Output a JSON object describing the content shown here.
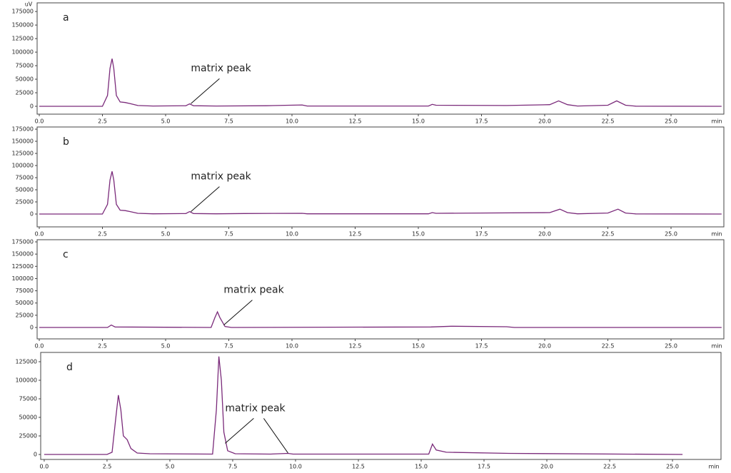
{
  "chart_data": [
    {
      "type": "line",
      "title": "a",
      "y_label": "uV",
      "x_label": "min",
      "color": "#7a2a7a",
      "xlim": [
        -0.085,
        27.09
      ],
      "ylim": [
        -14500,
        191000
      ],
      "xticks": [
        {
          "value": 0,
          "label": "0.0"
        },
        2.5,
        {
          "value": 5,
          "label": "5.0"
        },
        7.5,
        {
          "value": 10,
          "label": "10.0"
        },
        12.5,
        {
          "value": 15,
          "label": "15.0"
        },
        17.5,
        {
          "value": 20,
          "label": "20.0"
        },
        22.5,
        {
          "value": 25,
          "label": "25.0"
        }
      ],
      "yticks": [
        0,
        25000,
        50000,
        75000,
        100000,
        125000,
        150000,
        175000
      ],
      "x": [
        0,
        2.5,
        2.7,
        2.8,
        2.88,
        2.95,
        3.05,
        3.2,
        3.4,
        3.6,
        3.9,
        4.5,
        5.8,
        5.95,
        6.1,
        7,
        9,
        10.4,
        10.6,
        15.4,
        15.55,
        15.7,
        18.5,
        20.2,
        20.55,
        20.9,
        21.3,
        22.5,
        22.85,
        23.2,
        23.6,
        27
      ],
      "values": [
        0,
        0,
        20000,
        70000,
        88000,
        70000,
        20000,
        8000,
        7000,
        5000,
        1500,
        500,
        1000,
        4500,
        1000,
        500,
        1000,
        2500,
        500,
        500,
        3500,
        2000,
        1500,
        3000,
        10000,
        3000,
        500,
        2000,
        10000,
        2000,
        300,
        0
      ],
      "annotations": [
        {
          "text": "matrix peak",
          "points": [
            {
              "x": 6.0,
              "y": 5000
            }
          ]
        }
      ]
    },
    {
      "type": "line",
      "title": "b",
      "x_label": "min",
      "color": "#7a2a7a",
      "xlim": [
        -0.085,
        27.09
      ],
      "ylim": [
        -26500,
        179500
      ],
      "xticks": [
        {
          "value": 0,
          "label": "0.0"
        },
        2.5,
        {
          "value": 5,
          "label": "5.0"
        },
        7.5,
        {
          "value": 10,
          "label": "10.0"
        },
        12.5,
        {
          "value": 15,
          "label": "15.0"
        },
        17.5,
        {
          "value": 20,
          "label": "20.0"
        },
        22.5,
        {
          "value": 25,
          "label": "25.0"
        }
      ],
      "yticks": [
        0,
        25000,
        50000,
        75000,
        100000,
        125000,
        150000,
        175000
      ],
      "x": [
        0,
        2.5,
        2.7,
        2.8,
        2.88,
        2.95,
        3.05,
        3.2,
        3.4,
        3.6,
        3.9,
        4.5,
        5.8,
        5.95,
        6.1,
        7,
        8.1,
        10.4,
        10.6,
        15.4,
        15.55,
        15.7,
        17.4,
        20.2,
        20.6,
        20.9,
        21.3,
        22.5,
        22.9,
        23.2,
        23.6,
        27
      ],
      "values": [
        0,
        0,
        20000,
        70000,
        88000,
        70000,
        20000,
        8000,
        7000,
        5000,
        1500,
        500,
        1000,
        5000,
        1000,
        500,
        1000,
        1500,
        500,
        500,
        3000,
        1500,
        2000,
        3000,
        10000,
        3000,
        500,
        2000,
        10000,
        2000,
        300,
        0
      ],
      "annotations": [
        {
          "text": "matrix peak",
          "points": [
            {
              "x": 6.0,
              "y": 5000
            }
          ]
        }
      ]
    },
    {
      "type": "line",
      "title": "c",
      "x_label": "min",
      "color": "#7a2a7a",
      "xlim": [
        -0.085,
        27.09
      ],
      "ylim": [
        -23300,
        179400
      ],
      "xticks": [
        {
          "value": 0,
          "label": "0.0"
        },
        2.5,
        {
          "value": 5,
          "label": "5.0"
        },
        7.5,
        {
          "value": 10,
          "label": "10.0"
        },
        12.5,
        {
          "value": 15,
          "label": "15.0"
        },
        17.5,
        {
          "value": 20,
          "label": "20.0"
        },
        22.5,
        {
          "value": 25,
          "label": "25.0"
        }
      ],
      "yticks": [
        0,
        25000,
        50000,
        75000,
        100000,
        125000,
        150000,
        175000
      ],
      "x": [
        0,
        2.7,
        2.85,
        3.0,
        6.8,
        6.95,
        7.05,
        7.15,
        7.35,
        7.6,
        15.5,
        16.3,
        18.5,
        18.8,
        27
      ],
      "values": [
        0,
        0,
        5000,
        1000,
        0,
        20000,
        32000,
        20000,
        2000,
        0,
        1000,
        2500,
        1500,
        0,
        0
      ],
      "annotations": [
        {
          "text": "matrix peak",
          "points": [
            {
              "x": 7.3,
              "y": 5000
            }
          ]
        }
      ]
    },
    {
      "type": "line",
      "title": "d",
      "x_label": "min",
      "color": "#7a2a7a",
      "xlim": [
        -0.14,
        26.93
      ],
      "ylim": [
        -6700,
        137500
      ],
      "xticks": [
        {
          "value": 0,
          "label": "0.0"
        },
        2.5,
        {
          "value": 5,
          "label": "5.0"
        },
        7.5,
        {
          "value": 10,
          "label": "10.0"
        },
        12.5,
        {
          "value": 15,
          "label": "15.0"
        },
        17.5,
        {
          "value": 20,
          "label": "20.0"
        },
        22.5,
        {
          "value": 25,
          "label": "25.0"
        }
      ],
      "yticks": [
        0,
        25000,
        50000,
        75000,
        100000,
        125000
      ],
      "x": [
        0,
        2.5,
        2.7,
        2.85,
        2.95,
        3.05,
        3.15,
        3.3,
        3.45,
        3.7,
        4.2,
        6.7,
        6.85,
        6.95,
        7.05,
        7.15,
        7.3,
        7.6,
        9,
        9.7,
        9.9,
        15.3,
        15.45,
        15.6,
        16,
        18.5,
        25.4
      ],
      "values": [
        0,
        0,
        3000,
        50000,
        80000,
        60000,
        25000,
        20000,
        8000,
        2000,
        1000,
        500,
        60000,
        132000,
        100000,
        30000,
        5000,
        1000,
        500,
        1500,
        500,
        500,
        14000,
        6000,
        3000,
        1500,
        0
      ],
      "annotations": [
        {
          "text": "matrix peak",
          "points": [
            {
              "x": 7.2,
              "y": 15000
            },
            {
              "x": 9.7,
              "y": 2000
            }
          ]
        }
      ]
    }
  ]
}
